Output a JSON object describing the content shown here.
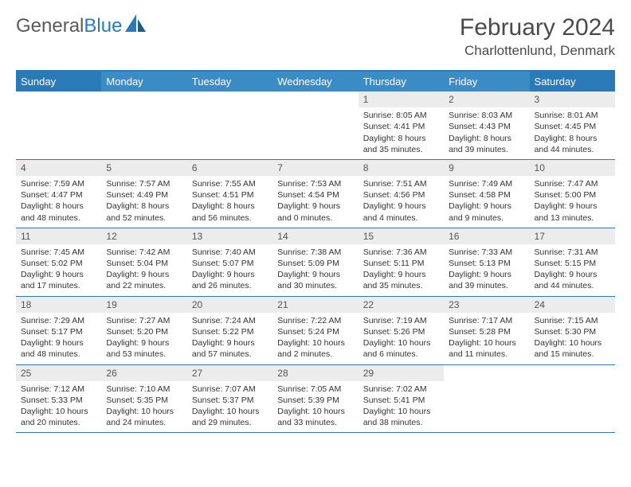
{
  "logo": {
    "part1": "General",
    "part2": "Blue"
  },
  "title": "February 2024",
  "location": "Charlottenlund, Denmark",
  "colors": {
    "header_bg": "#3b8bc4",
    "header_weekend_bg": "#2a7ab8",
    "daynum_bg": "#ececec",
    "border": "#2a7ab8",
    "text": "#333333"
  },
  "weekdays": [
    "Sunday",
    "Monday",
    "Tuesday",
    "Wednesday",
    "Thursday",
    "Friday",
    "Saturday"
  ],
  "weeks": [
    [
      {
        "num": "",
        "sunrise": "",
        "sunset": "",
        "daylight": ""
      },
      {
        "num": "",
        "sunrise": "",
        "sunset": "",
        "daylight": ""
      },
      {
        "num": "",
        "sunrise": "",
        "sunset": "",
        "daylight": ""
      },
      {
        "num": "",
        "sunrise": "",
        "sunset": "",
        "daylight": ""
      },
      {
        "num": "1",
        "sunrise": "Sunrise: 8:05 AM",
        "sunset": "Sunset: 4:41 PM",
        "daylight": "Daylight: 8 hours and 35 minutes."
      },
      {
        "num": "2",
        "sunrise": "Sunrise: 8:03 AM",
        "sunset": "Sunset: 4:43 PM",
        "daylight": "Daylight: 8 hours and 39 minutes."
      },
      {
        "num": "3",
        "sunrise": "Sunrise: 8:01 AM",
        "sunset": "Sunset: 4:45 PM",
        "daylight": "Daylight: 8 hours and 44 minutes."
      }
    ],
    [
      {
        "num": "4",
        "sunrise": "Sunrise: 7:59 AM",
        "sunset": "Sunset: 4:47 PM",
        "daylight": "Daylight: 8 hours and 48 minutes."
      },
      {
        "num": "5",
        "sunrise": "Sunrise: 7:57 AM",
        "sunset": "Sunset: 4:49 PM",
        "daylight": "Daylight: 8 hours and 52 minutes."
      },
      {
        "num": "6",
        "sunrise": "Sunrise: 7:55 AM",
        "sunset": "Sunset: 4:51 PM",
        "daylight": "Daylight: 8 hours and 56 minutes."
      },
      {
        "num": "7",
        "sunrise": "Sunrise: 7:53 AM",
        "sunset": "Sunset: 4:54 PM",
        "daylight": "Daylight: 9 hours and 0 minutes."
      },
      {
        "num": "8",
        "sunrise": "Sunrise: 7:51 AM",
        "sunset": "Sunset: 4:56 PM",
        "daylight": "Daylight: 9 hours and 4 minutes."
      },
      {
        "num": "9",
        "sunrise": "Sunrise: 7:49 AM",
        "sunset": "Sunset: 4:58 PM",
        "daylight": "Daylight: 9 hours and 9 minutes."
      },
      {
        "num": "10",
        "sunrise": "Sunrise: 7:47 AM",
        "sunset": "Sunset: 5:00 PM",
        "daylight": "Daylight: 9 hours and 13 minutes."
      }
    ],
    [
      {
        "num": "11",
        "sunrise": "Sunrise: 7:45 AM",
        "sunset": "Sunset: 5:02 PM",
        "daylight": "Daylight: 9 hours and 17 minutes."
      },
      {
        "num": "12",
        "sunrise": "Sunrise: 7:42 AM",
        "sunset": "Sunset: 5:04 PM",
        "daylight": "Daylight: 9 hours and 22 minutes."
      },
      {
        "num": "13",
        "sunrise": "Sunrise: 7:40 AM",
        "sunset": "Sunset: 5:07 PM",
        "daylight": "Daylight: 9 hours and 26 minutes."
      },
      {
        "num": "14",
        "sunrise": "Sunrise: 7:38 AM",
        "sunset": "Sunset: 5:09 PM",
        "daylight": "Daylight: 9 hours and 30 minutes."
      },
      {
        "num": "15",
        "sunrise": "Sunrise: 7:36 AM",
        "sunset": "Sunset: 5:11 PM",
        "daylight": "Daylight: 9 hours and 35 minutes."
      },
      {
        "num": "16",
        "sunrise": "Sunrise: 7:33 AM",
        "sunset": "Sunset: 5:13 PM",
        "daylight": "Daylight: 9 hours and 39 minutes."
      },
      {
        "num": "17",
        "sunrise": "Sunrise: 7:31 AM",
        "sunset": "Sunset: 5:15 PM",
        "daylight": "Daylight: 9 hours and 44 minutes."
      }
    ],
    [
      {
        "num": "18",
        "sunrise": "Sunrise: 7:29 AM",
        "sunset": "Sunset: 5:17 PM",
        "daylight": "Daylight: 9 hours and 48 minutes."
      },
      {
        "num": "19",
        "sunrise": "Sunrise: 7:27 AM",
        "sunset": "Sunset: 5:20 PM",
        "daylight": "Daylight: 9 hours and 53 minutes."
      },
      {
        "num": "20",
        "sunrise": "Sunrise: 7:24 AM",
        "sunset": "Sunset: 5:22 PM",
        "daylight": "Daylight: 9 hours and 57 minutes."
      },
      {
        "num": "21",
        "sunrise": "Sunrise: 7:22 AM",
        "sunset": "Sunset: 5:24 PM",
        "daylight": "Daylight: 10 hours and 2 minutes."
      },
      {
        "num": "22",
        "sunrise": "Sunrise: 7:19 AM",
        "sunset": "Sunset: 5:26 PM",
        "daylight": "Daylight: 10 hours and 6 minutes."
      },
      {
        "num": "23",
        "sunrise": "Sunrise: 7:17 AM",
        "sunset": "Sunset: 5:28 PM",
        "daylight": "Daylight: 10 hours and 11 minutes."
      },
      {
        "num": "24",
        "sunrise": "Sunrise: 7:15 AM",
        "sunset": "Sunset: 5:30 PM",
        "daylight": "Daylight: 10 hours and 15 minutes."
      }
    ],
    [
      {
        "num": "25",
        "sunrise": "Sunrise: 7:12 AM",
        "sunset": "Sunset: 5:33 PM",
        "daylight": "Daylight: 10 hours and 20 minutes."
      },
      {
        "num": "26",
        "sunrise": "Sunrise: 7:10 AM",
        "sunset": "Sunset: 5:35 PM",
        "daylight": "Daylight: 10 hours and 24 minutes."
      },
      {
        "num": "27",
        "sunrise": "Sunrise: 7:07 AM",
        "sunset": "Sunset: 5:37 PM",
        "daylight": "Daylight: 10 hours and 29 minutes."
      },
      {
        "num": "28",
        "sunrise": "Sunrise: 7:05 AM",
        "sunset": "Sunset: 5:39 PM",
        "daylight": "Daylight: 10 hours and 33 minutes."
      },
      {
        "num": "29",
        "sunrise": "Sunrise: 7:02 AM",
        "sunset": "Sunset: 5:41 PM",
        "daylight": "Daylight: 10 hours and 38 minutes."
      },
      {
        "num": "",
        "sunrise": "",
        "sunset": "",
        "daylight": ""
      },
      {
        "num": "",
        "sunrise": "",
        "sunset": "",
        "daylight": ""
      }
    ]
  ]
}
